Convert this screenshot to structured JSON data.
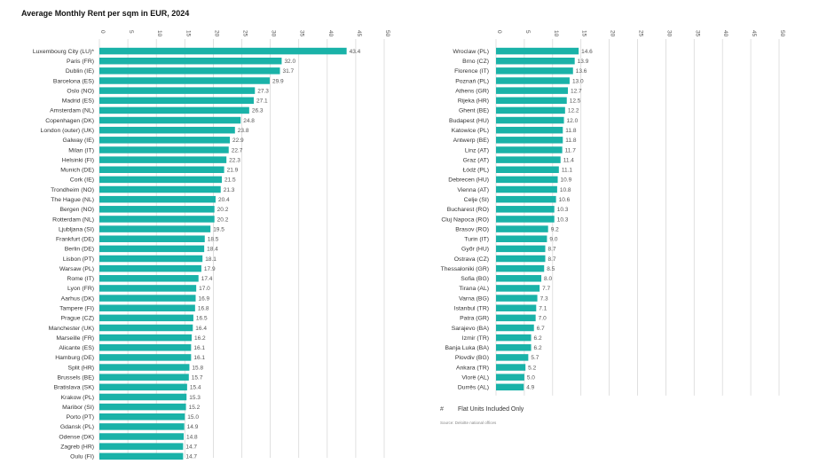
{
  "title": "Average Monthly Rent per sqm in EUR, 2024",
  "legend": {
    "marker": "#",
    "text": "Flat Units Included Only"
  },
  "source": "Source: Deloitte national offices",
  "colors": {
    "bar": "#1ab2a8",
    "grid": "#d9d9d9",
    "text": "#333333"
  },
  "chart_data": [
    {
      "type": "bar",
      "orientation": "horizontal",
      "xlim": [
        0,
        50
      ],
      "ticks": [
        0,
        5,
        10,
        15,
        20,
        25,
        30,
        35,
        40,
        45,
        50
      ],
      "categories": [
        "Luxembourg City (LU)*",
        "Paris (FR)",
        "Dublin (IE)",
        "Barcelona (ES)",
        "Oslo (NO)",
        "Madrid (ES)",
        "Amsterdam (NL)",
        "Copenhagen (DK)",
        "London (outer) (UK)",
        "Galway (IE)",
        "Milan (IT)",
        "Helsinki (FI)",
        "Munich (DE)",
        "Cork (IE)",
        "Trondheim (NO)",
        "The Hague (NL)",
        "Bergen (NO)",
        "Rotterdam (NL)",
        "Ljubljana (SI)",
        "Frankfurt (DE)",
        "Berlin (DE)",
        "Lisbon (PT)",
        "Warsaw (PL)",
        "Rome (IT)",
        "Lyon (FR)",
        "Aarhus (DK)",
        "Tampere (FI)",
        "Prague (CZ)",
        "Manchester (UK)",
        "Marseille (FR)",
        "Alicante (ES)",
        "Hamburg (DE)",
        "Split (HR)",
        "Brussels (BE)",
        "Bratislava (SK)",
        "Krakow (PL)",
        "Maribor (SI)",
        "Porto (PT)",
        "Gdansk (PL)",
        "Odense (DK)",
        "Zagreb (HR)",
        "Oulu (FI)"
      ],
      "values": [
        43.4,
        32.0,
        31.7,
        29.9,
        27.3,
        27.1,
        26.3,
        24.8,
        23.8,
        22.9,
        22.7,
        22.3,
        21.9,
        21.5,
        21.3,
        20.4,
        20.2,
        20.2,
        19.5,
        18.5,
        18.4,
        18.1,
        17.9,
        17.4,
        17.0,
        16.9,
        16.8,
        16.5,
        16.4,
        16.2,
        16.1,
        16.1,
        15.8,
        15.7,
        15.4,
        15.3,
        15.2,
        15.0,
        14.9,
        14.8,
        14.7,
        14.7
      ]
    },
    {
      "type": "bar",
      "orientation": "horizontal",
      "xlim": [
        0,
        50
      ],
      "ticks": [
        0,
        5,
        10,
        15,
        20,
        25,
        30,
        35,
        40,
        45,
        50
      ],
      "categories": [
        "Wroclaw (PL)",
        "Brno (CZ)",
        "Florence (IT)",
        "Poznań (PL)",
        "Athens (GR)",
        "Rijeka (HR)",
        "Ghent (BE)",
        "Budapest (HU)",
        "Katowice (PL)",
        "Antwerp (BE)",
        "Linz (AT)",
        "Graz (AT)",
        "Łódź (PL)",
        "Debrecen (HU)",
        "Vienna (AT)",
        "Celje (SI)",
        "Bucharest (RO)",
        "Cluj Napoca (RO)",
        "Brasov (RO)",
        "Turin (IT)",
        "Győr (HU)",
        "Ostrava (CZ)",
        "Thessaloniki (GR)",
        "Sofia (BG)",
        "Tirana (AL)",
        "Varna (BG)",
        "Istanbul (TR)",
        "Patra (GR)",
        "Sarajevo (BA)",
        "Izmir (TR)",
        "Banja Luka (BA)",
        "Plovdiv (BG)",
        "Ankara (TR)",
        "Vlorë (AL)",
        "Durrës (AL)"
      ],
      "values": [
        14.6,
        13.9,
        13.6,
        13.0,
        12.7,
        12.5,
        12.2,
        12.0,
        11.8,
        11.8,
        11.7,
        11.4,
        11.1,
        10.9,
        10.8,
        10.6,
        10.3,
        10.3,
        9.2,
        9.0,
        8.7,
        8.7,
        8.5,
        8.0,
        7.7,
        7.3,
        7.1,
        7.0,
        6.7,
        6.2,
        6.2,
        5.7,
        5.2,
        5.0,
        4.9
      ]
    }
  ]
}
